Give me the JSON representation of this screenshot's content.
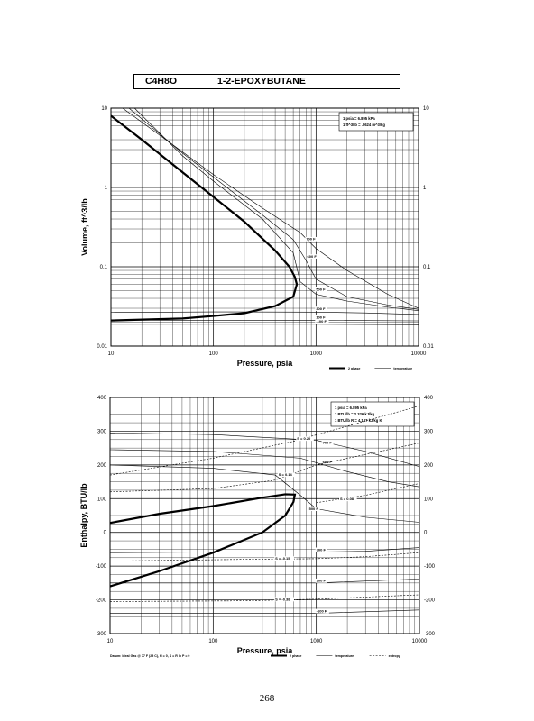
{
  "header": {
    "formula": "C4H8O",
    "name": "1-2-EPOXYBUTANE"
  },
  "page_number": "268",
  "chart_data": [
    {
      "type": "line",
      "x_scale": "log",
      "y_scale": "log",
      "xlim": [
        10,
        10000
      ],
      "ylim": [
        0.01,
        10
      ],
      "xlabel": "Pressure,  psia",
      "ylabel": "Volume,  ft^3/lb",
      "x_ticks": [
        "10",
        "100",
        "1000",
        "10000"
      ],
      "y_ticks": [
        "0.01",
        "0.1",
        "1",
        "10"
      ],
      "y_ticks_right": [
        "0.01",
        "0.1",
        "1",
        "10"
      ],
      "grid": true,
      "notes": [
        "1 psia  =  6.895 kPa",
        "1 ft^3/lb  =  .0624 m^3/kg"
      ],
      "legend": [
        {
          "label": "2 phase",
          "style": "thick solid"
        },
        {
          "label": "temperature",
          "style": "thin solid"
        }
      ],
      "series": [
        {
          "kind": "2 phase",
          "points": [
            [
              10,
              8.0
            ],
            [
              20,
              4.0
            ],
            [
              50,
              1.55
            ],
            [
              100,
              0.76
            ],
            [
              200,
              0.37
            ],
            [
              400,
              0.16
            ],
            [
              550,
              0.1
            ],
            [
              620,
              0.075
            ],
            [
              650,
              0.06
            ],
            [
              600,
              0.042
            ],
            [
              400,
              0.032
            ],
            [
              200,
              0.026
            ],
            [
              100,
              0.024
            ],
            [
              50,
              0.0223
            ],
            [
              10,
              0.021
            ]
          ]
        },
        {
          "kind": "temperature",
          "name": "700 F",
          "points": [
            [
              13,
              10
            ],
            [
              50,
              2.8
            ],
            [
              100,
              1.45
            ],
            [
              300,
              0.55
            ],
            [
              700,
              0.27
            ],
            [
              1000,
              0.17
            ],
            [
              2000,
              0.09
            ],
            [
              5000,
              0.045
            ],
            [
              10000,
              0.03
            ]
          ]
        },
        {
          "kind": "temperature",
          "name": "600 F",
          "points": [
            [
              15,
              10
            ],
            [
              50,
              2.7
            ],
            [
              100,
              1.35
            ],
            [
              300,
              0.45
            ],
            [
              600,
              0.22
            ],
            [
              800,
              0.12
            ],
            [
              1000,
              0.07
            ],
            [
              2000,
              0.042
            ],
            [
              5000,
              0.033
            ],
            [
              10000,
              0.029
            ]
          ]
        },
        {
          "kind": "temperature",
          "name": "500 F",
          "points": [
            [
              17,
              10
            ],
            [
              50,
              2.5
            ],
            [
              100,
              1.2
            ],
            [
              300,
              0.4
            ],
            [
              600,
              0.15
            ],
            [
              700,
              0.065
            ],
            [
              1000,
              0.045
            ],
            [
              2000,
              0.037
            ],
            [
              5000,
              0.031
            ],
            [
              10000,
              0.028
            ]
          ]
        },
        {
          "kind": "temperature",
          "name": "300 F",
          "points": [
            [
              10,
              0.0265
            ],
            [
              100,
              0.027
            ],
            [
              1000,
              0.0268
            ],
            [
              3000,
              0.0262
            ],
            [
              10000,
              0.025
            ]
          ]
        },
        {
          "kind": "temperature",
          "name": "100 F",
          "points": [
            [
              10,
              0.0212
            ],
            [
              100,
              0.0212
            ],
            [
              1000,
              0.0211
            ],
            [
              10000,
              0.0208
            ]
          ]
        },
        {
          "kind": "temperature",
          "name": "-100 F",
          "points": [
            [
              10,
              0.0188
            ],
            [
              100,
              0.0188
            ],
            [
              1000,
              0.0188
            ],
            [
              10000,
              0.0186
            ]
          ]
        }
      ]
    },
    {
      "type": "line",
      "x_scale": "log",
      "y_scale": "linear",
      "xlim": [
        10,
        10000
      ],
      "ylim": [
        -300,
        400
      ],
      "xlabel": "Pressure,  psia",
      "ylabel": "Enthalpy,  BTU/lb",
      "x_ticks": [
        "10",
        "100",
        "1000",
        "10000"
      ],
      "y_ticks": [
        "-300",
        "-200",
        "-100",
        "0",
        "100",
        "200",
        "300",
        "400"
      ],
      "y_ticks_right": [
        "-300",
        "-200",
        "-100",
        "0",
        "100",
        "200",
        "300",
        "400"
      ],
      "grid": true,
      "notes": [
        "1 psia  =  6.895 kPa",
        "1 BTU/lb  =  2.326 kJ/kg",
        "1 BTU/lb R  =  4.187 kJ/kg K"
      ],
      "footnote": "Datum: Ideal Gas @ 77 F (25 C),  H = 0,  S = R ln P = 0",
      "legend": [
        {
          "label": "2 phase",
          "style": "thick solid"
        },
        {
          "label": "temperature",
          "style": "thin solid"
        },
        {
          "label": "entropy",
          "style": "thin dashed"
        }
      ],
      "series": [
        {
          "kind": "2 phase",
          "points": [
            [
              10,
              -160
            ],
            [
              30,
              -115
            ],
            [
              100,
              -60
            ],
            [
              300,
              0
            ],
            [
              500,
              50
            ],
            [
              600,
              90
            ],
            [
              620,
              112
            ],
            [
              500,
              113
            ],
            [
              300,
              103
            ],
            [
              100,
              78
            ],
            [
              30,
              55
            ],
            [
              10,
              28
            ]
          ]
        },
        {
          "kind": "temperature",
          "name": "700 F",
          "points": [
            [
              10,
              295
            ],
            [
              100,
              290
            ],
            [
              1000,
              273
            ],
            [
              3000,
              240
            ],
            [
              10000,
              195
            ]
          ]
        },
        {
          "kind": "temperature",
          "name": "600 F",
          "points": [
            [
              10,
              245
            ],
            [
              100,
              240
            ],
            [
              700,
              220
            ],
            [
              2000,
              180
            ],
            [
              5000,
              150
            ],
            [
              10000,
              135
            ]
          ]
        },
        {
          "kind": "temperature",
          "name": "500 F",
          "points": [
            [
              10,
              200
            ],
            [
              100,
              190
            ],
            [
              400,
              170
            ],
            [
              700,
              110
            ],
            [
              1000,
              70
            ],
            [
              3000,
              45
            ],
            [
              10000,
              30
            ]
          ]
        },
        {
          "kind": "temperature",
          "name": "300 F",
          "points": [
            [
              10,
              -60
            ],
            [
              200,
              -58
            ],
            [
              1000,
              -58
            ],
            [
              3000,
              -56
            ],
            [
              10000,
              -45
            ]
          ]
        },
        {
          "kind": "temperature",
          "name": "100 F",
          "points": [
            [
              10,
              -150
            ],
            [
              1000,
              -150
            ],
            [
              10000,
              -138
            ]
          ]
        },
        {
          "kind": "temperature",
          "name": "-100 F",
          "points": [
            [
              10,
              -240
            ],
            [
              1000,
              -240
            ],
            [
              10000,
              -230
            ]
          ]
        },
        {
          "kind": "entropy",
          "name": "S = 0.20",
          "points": [
            [
              10,
              170
            ],
            [
              100,
              220
            ],
            [
              600,
              270
            ],
            [
              2000,
              315
            ],
            [
              10000,
              375
            ]
          ]
        },
        {
          "kind": "entropy",
          "name": "S = 0.14",
          "points": [
            [
              10,
              120
            ],
            [
              100,
              130
            ],
            [
              400,
              155
            ],
            [
              1000,
              200
            ],
            [
              10000,
              265
            ]
          ]
        },
        {
          "kind": "entropy",
          "name": "S = 0.08",
          "points": [
            [
              1000,
              88
            ],
            [
              3000,
              110
            ],
            [
              10000,
              145
            ]
          ]
        },
        {
          "kind": "entropy",
          "name": "S = -0.15",
          "points": [
            [
              10,
              -85
            ],
            [
              200,
              -80
            ],
            [
              1000,
              -78
            ],
            [
              3000,
              -72
            ],
            [
              10000,
              -60
            ]
          ]
        },
        {
          "kind": "entropy",
          "name": "S = -0.38",
          "points": [
            [
              10,
              -205
            ],
            [
              200,
              -203
            ],
            [
              1000,
              -198
            ],
            [
              10000,
              -185
            ]
          ]
        }
      ]
    }
  ]
}
